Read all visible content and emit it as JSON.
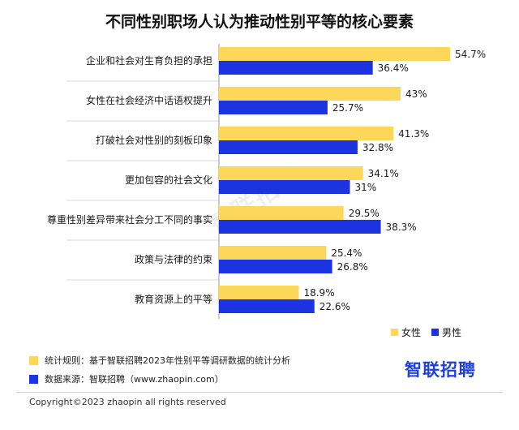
{
  "colors": {
    "female": "#FDD75A",
    "male": "#1B33E0"
  },
  "chart_data": {
    "type": "bar",
    "orientation": "horizontal",
    "title": "不同性别职场人认为推动性别平等的核心要素",
    "categories": [
      "企业和社会对生育负担的承担",
      "女性在社会经济中话语权提升",
      "打破社会对性别的刻板印象",
      "更加包容的社会文化",
      "尊重性别差异带来社会分工不同的事实",
      "政策与法律的约束",
      "教育资源上的平等"
    ],
    "series": [
      {
        "name": "女性",
        "values": [
          54.7,
          43,
          41.3,
          34.1,
          29.5,
          25.4,
          18.9
        ],
        "labels": [
          "54.7%",
          "43%",
          "41.3%",
          "34.1%",
          "29.5%",
          "25.4%",
          "18.9%"
        ]
      },
      {
        "name": "男性",
        "values": [
          36.4,
          25.7,
          32.8,
          31,
          38.3,
          26.8,
          22.6
        ],
        "labels": [
          "36.4%",
          "25.7%",
          "32.8%",
          "31%",
          "38.3%",
          "26.8%",
          "22.6%"
        ]
      }
    ],
    "xlim": [
      0,
      60
    ],
    "legend": "bottom-right",
    "grid": false
  },
  "watermark": "智联招聘",
  "notes": {
    "rule": "统计规则：基于智联招聘2023年性别平等调研数据的统计分析",
    "source": "数据来源：智联招聘（www.zhaopin.com）"
  },
  "brand": "智联招聘",
  "copyright": "Copyright©2023 zhaopin all rights reserved"
}
